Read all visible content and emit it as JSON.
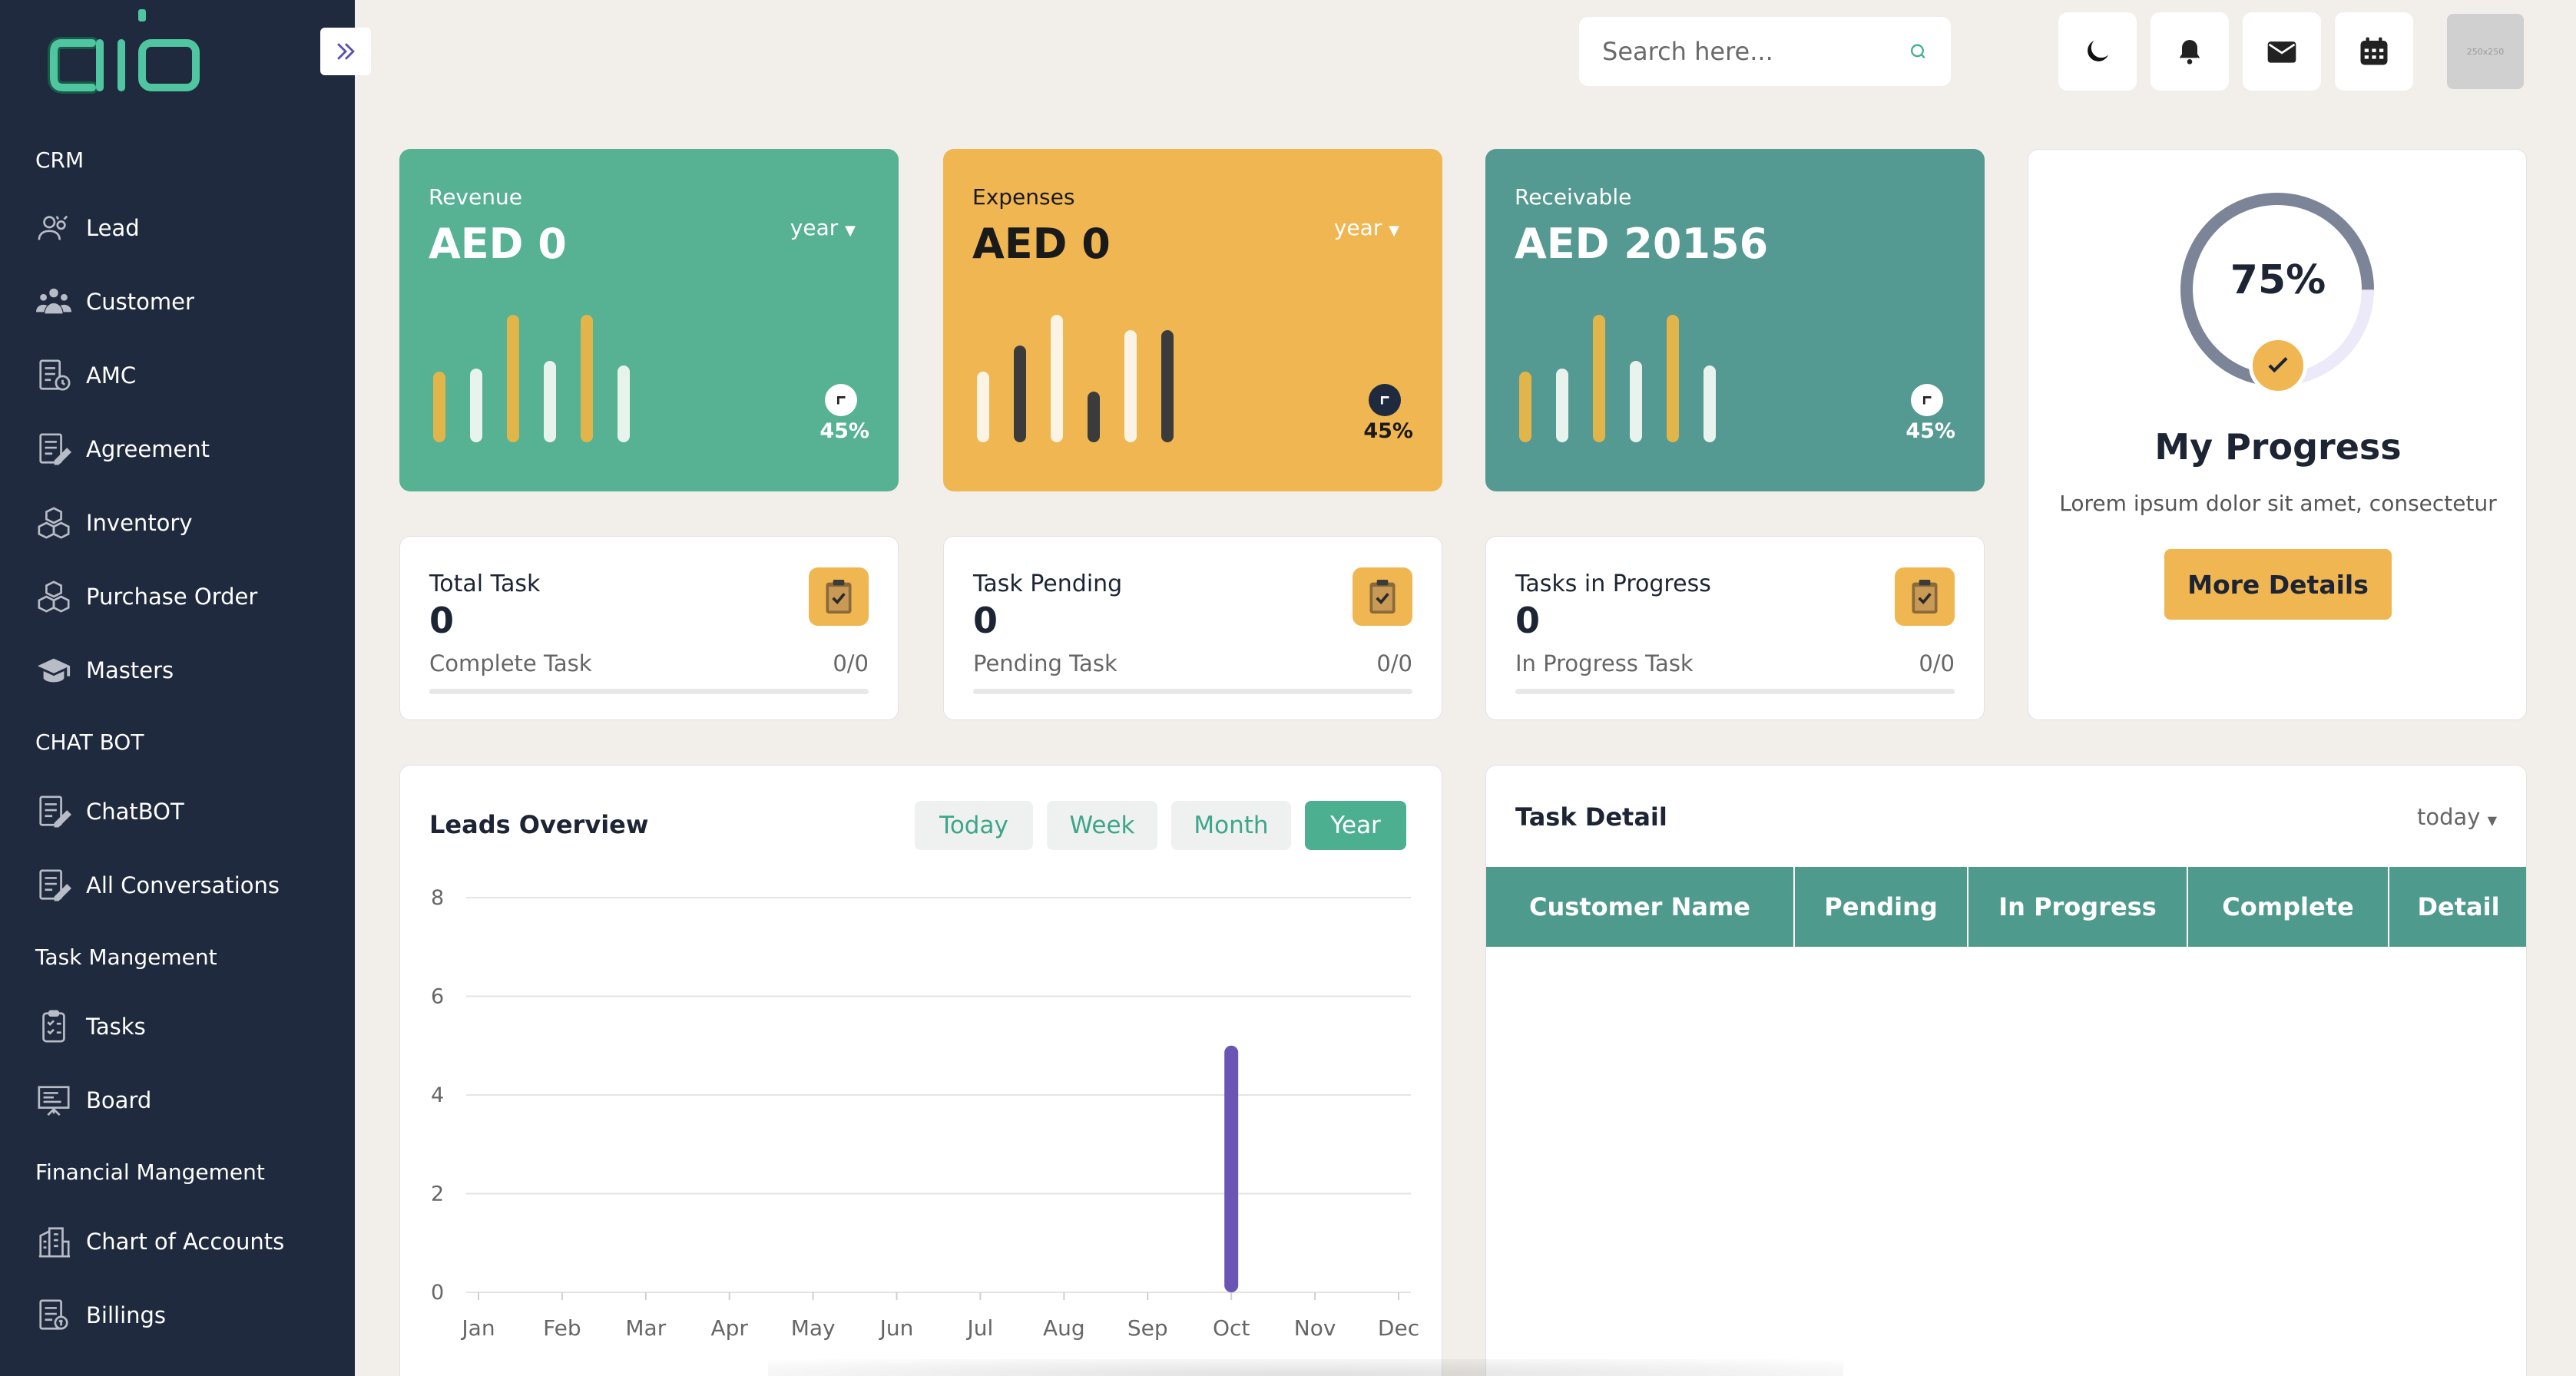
{
  "app": {
    "logo_text": "alo"
  },
  "sidebar": {
    "sections": [
      {
        "label": "CRM",
        "items": [
          {
            "label": "Lead",
            "icon": "lead-icon"
          },
          {
            "label": "Customer",
            "icon": "customer-icon"
          },
          {
            "label": "AMC",
            "icon": "amc-icon"
          },
          {
            "label": "Agreement",
            "icon": "agreement-icon"
          },
          {
            "label": "Inventory",
            "icon": "inventory-icon"
          },
          {
            "label": "Purchase Order",
            "icon": "purchase-order-icon"
          },
          {
            "label": "Masters",
            "icon": "masters-icon"
          }
        ]
      },
      {
        "label": "CHAT BOT",
        "items": [
          {
            "label": "ChatBOT",
            "icon": "chatbot-icon"
          },
          {
            "label": "All Conversations",
            "icon": "conversations-icon"
          }
        ]
      },
      {
        "label": "Task Mangement",
        "items": [
          {
            "label": "Tasks",
            "icon": "tasks-icon"
          },
          {
            "label": "Board",
            "icon": "board-icon"
          }
        ]
      },
      {
        "label": "Financial Mangement",
        "items": [
          {
            "label": "Chart of Accounts",
            "icon": "accounts-icon"
          },
          {
            "label": "Billings",
            "icon": "billings-icon"
          }
        ]
      }
    ]
  },
  "header": {
    "search_placeholder": "Search here...",
    "avatar_text": "250x250"
  },
  "stats": {
    "revenue": {
      "label": "Revenue",
      "amount": "AED 0",
      "period": "year",
      "percent": "45%",
      "color": "#56b293"
    },
    "expenses": {
      "label": "Expenses",
      "amount": "AED 0",
      "period": "year",
      "percent": "45%",
      "color": "#f0b651"
    },
    "receivable": {
      "label": "Receivable",
      "amount": "AED 20156",
      "percent": "45%",
      "color": "#559a92"
    }
  },
  "tasks": {
    "total": {
      "title": "Total Task",
      "count": "0",
      "sub": "Complete Task",
      "ratio": "0/0",
      "progress": 0
    },
    "pending": {
      "title": "Task Pending",
      "count": "0",
      "sub": "Pending Task",
      "ratio": "0/0",
      "progress": 0
    },
    "in_progress": {
      "title": "Tasks in Progress",
      "count": "0",
      "sub": "In Progress Task",
      "ratio": "0/0",
      "progress": 0
    }
  },
  "progress": {
    "percent": "75%",
    "value": 0.75,
    "title": "My Progress",
    "subtitle": "Lorem ipsum dolor sit amet, consectetur",
    "button": "More Details"
  },
  "leads": {
    "title": "Leads Overview",
    "filters": [
      "Today",
      "Week",
      "Month",
      "Year"
    ],
    "active_filter": "Year"
  },
  "chart_data": {
    "type": "bar",
    "title": "Leads Overview",
    "categories": [
      "Jan",
      "Feb",
      "Mar",
      "Apr",
      "May",
      "Jun",
      "Jul",
      "Aug",
      "Sep",
      "Oct",
      "Nov",
      "Dec"
    ],
    "values": [
      0,
      0,
      0,
      0,
      0,
      0,
      0,
      0,
      0,
      5,
      0,
      0
    ],
    "yticks": [
      "0",
      "2",
      "4",
      "6",
      "8"
    ],
    "ylim": [
      0,
      8
    ],
    "grid": true,
    "bar_color": "#6a55b5"
  },
  "task_detail": {
    "title": "Task Detail",
    "period": "today",
    "columns": [
      "Customer Name",
      "Pending",
      "In Progress",
      "Complete",
      "Detail"
    ]
  }
}
